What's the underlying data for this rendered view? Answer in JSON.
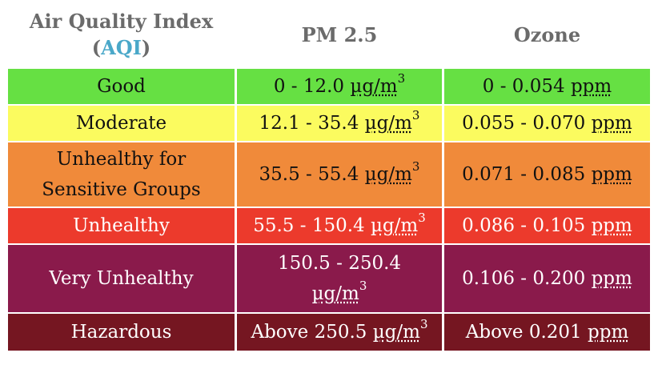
{
  "header": {
    "col1_line1": "Air Quality Index",
    "col1_open": "(",
    "col1_acronym": "AQI",
    "col1_close": ")",
    "col2": "PM 2.5",
    "col3": "Ozone"
  },
  "colors": {
    "good": "#66e043",
    "moderate": "#fbfb5f",
    "usg": "#f08a3a",
    "unhealthy": "#ec3a2c",
    "very_unhealthy": "#8a1a4b",
    "hazardous": "#751621",
    "acronym": "#4aa8c9"
  },
  "rows": [
    {
      "category": "Good",
      "pm25_range": "0 - 12.0 ",
      "pm25_unit": "µg/m",
      "pm25_exp": "3",
      "ozone_range": "0 - 0.054 ",
      "ozone_unit": "ppm"
    },
    {
      "category": "Moderate",
      "pm25_range": "12.1 - 35.4 ",
      "pm25_unit": "µg/m",
      "pm25_exp": "3",
      "ozone_range": "0.055 - 0.070 ",
      "ozone_unit": "ppm"
    },
    {
      "category_line1": "Unhealthy for",
      "category_line2": "Sensitive Groups",
      "pm25_range": "35.5 - 55.4 ",
      "pm25_unit": "µg/m",
      "pm25_exp": "3",
      "ozone_range": "0.071 - 0.085 ",
      "ozone_unit": "ppm"
    },
    {
      "category": "Unhealthy",
      "pm25_range": "55.5 - 150.4 ",
      "pm25_unit": "µg/m",
      "pm25_exp": "3",
      "ozone_range": "0.086 - 0.105 ",
      "ozone_unit": "ppm"
    },
    {
      "category": "Very Unhealthy",
      "pm25_range": "150.5 - 250.4",
      "pm25_unit": "µg/m",
      "pm25_exp": "3",
      "ozone_range": "0.106 - 0.200 ",
      "ozone_unit": "ppm"
    },
    {
      "category": "Hazardous",
      "pm25_range": "Above 250.5 ",
      "pm25_unit": "µg/m",
      "pm25_exp": "3",
      "ozone_range": "Above 0.201 ",
      "ozone_unit": "ppm"
    }
  ]
}
